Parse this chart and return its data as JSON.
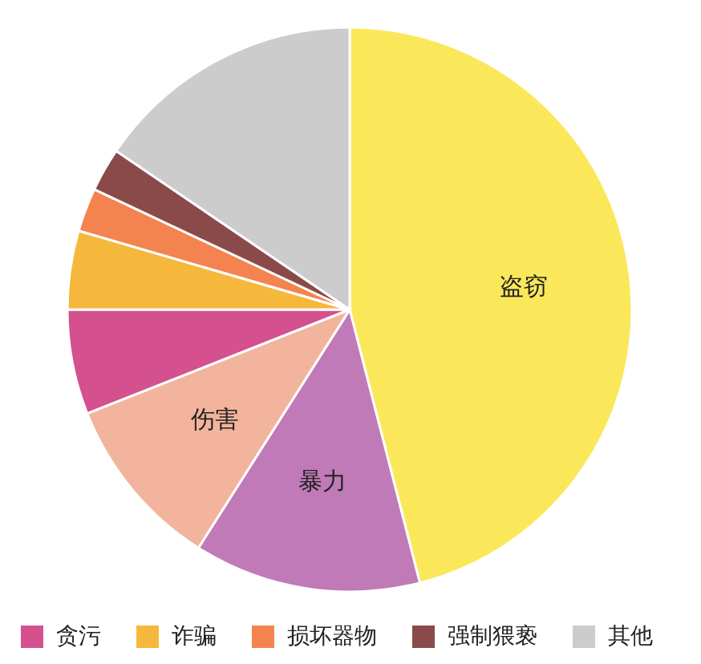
{
  "chart_data": {
    "type": "pie",
    "categories": [
      "盗窃",
      "暴力",
      "伤害",
      "贪污",
      "诈骗",
      "损坏器物",
      "强制猥亵",
      "其他"
    ],
    "values": [
      46,
      13,
      10,
      6,
      4.5,
      2.5,
      2.5,
      15.5
    ],
    "colors": [
      "#fbe85a",
      "#c07ab8",
      "#f2b49c",
      "#d4508f",
      "#f6b83c",
      "#f3844f",
      "#8b4a4a",
      "#cccccc"
    ],
    "legend": "bottom"
  }
}
